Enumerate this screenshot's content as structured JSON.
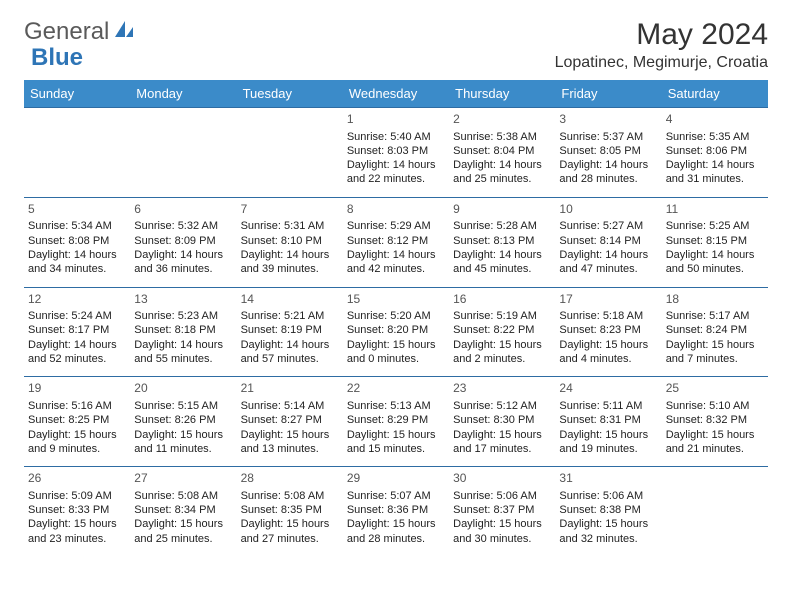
{
  "logo": {
    "text1": "General",
    "text2": "Blue"
  },
  "title": "May 2024",
  "location": "Lopatinec, Megimurje, Croatia",
  "colors": {
    "header_bg": "#3b8bc9",
    "header_text": "#ffffff",
    "row_border": "#2e6ca3",
    "logo_blue": "#2e75b6",
    "text": "#222222"
  },
  "day_headers": [
    "Sunday",
    "Monday",
    "Tuesday",
    "Wednesday",
    "Thursday",
    "Friday",
    "Saturday"
  ],
  "weeks": [
    [
      null,
      null,
      null,
      {
        "n": "1",
        "sr": "5:40 AM",
        "ss": "8:03 PM",
        "dl": "14 hours and 22 minutes."
      },
      {
        "n": "2",
        "sr": "5:38 AM",
        "ss": "8:04 PM",
        "dl": "14 hours and 25 minutes."
      },
      {
        "n": "3",
        "sr": "5:37 AM",
        "ss": "8:05 PM",
        "dl": "14 hours and 28 minutes."
      },
      {
        "n": "4",
        "sr": "5:35 AM",
        "ss": "8:06 PM",
        "dl": "14 hours and 31 minutes."
      }
    ],
    [
      {
        "n": "5",
        "sr": "5:34 AM",
        "ss": "8:08 PM",
        "dl": "14 hours and 34 minutes."
      },
      {
        "n": "6",
        "sr": "5:32 AM",
        "ss": "8:09 PM",
        "dl": "14 hours and 36 minutes."
      },
      {
        "n": "7",
        "sr": "5:31 AM",
        "ss": "8:10 PM",
        "dl": "14 hours and 39 minutes."
      },
      {
        "n": "8",
        "sr": "5:29 AM",
        "ss": "8:12 PM",
        "dl": "14 hours and 42 minutes."
      },
      {
        "n": "9",
        "sr": "5:28 AM",
        "ss": "8:13 PM",
        "dl": "14 hours and 45 minutes."
      },
      {
        "n": "10",
        "sr": "5:27 AM",
        "ss": "8:14 PM",
        "dl": "14 hours and 47 minutes."
      },
      {
        "n": "11",
        "sr": "5:25 AM",
        "ss": "8:15 PM",
        "dl": "14 hours and 50 minutes."
      }
    ],
    [
      {
        "n": "12",
        "sr": "5:24 AM",
        "ss": "8:17 PM",
        "dl": "14 hours and 52 minutes."
      },
      {
        "n": "13",
        "sr": "5:23 AM",
        "ss": "8:18 PM",
        "dl": "14 hours and 55 minutes."
      },
      {
        "n": "14",
        "sr": "5:21 AM",
        "ss": "8:19 PM",
        "dl": "14 hours and 57 minutes."
      },
      {
        "n": "15",
        "sr": "5:20 AM",
        "ss": "8:20 PM",
        "dl": "15 hours and 0 minutes."
      },
      {
        "n": "16",
        "sr": "5:19 AM",
        "ss": "8:22 PM",
        "dl": "15 hours and 2 minutes."
      },
      {
        "n": "17",
        "sr": "5:18 AM",
        "ss": "8:23 PM",
        "dl": "15 hours and 4 minutes."
      },
      {
        "n": "18",
        "sr": "5:17 AM",
        "ss": "8:24 PM",
        "dl": "15 hours and 7 minutes."
      }
    ],
    [
      {
        "n": "19",
        "sr": "5:16 AM",
        "ss": "8:25 PM",
        "dl": "15 hours and 9 minutes."
      },
      {
        "n": "20",
        "sr": "5:15 AM",
        "ss": "8:26 PM",
        "dl": "15 hours and 11 minutes."
      },
      {
        "n": "21",
        "sr": "5:14 AM",
        "ss": "8:27 PM",
        "dl": "15 hours and 13 minutes."
      },
      {
        "n": "22",
        "sr": "5:13 AM",
        "ss": "8:29 PM",
        "dl": "15 hours and 15 minutes."
      },
      {
        "n": "23",
        "sr": "5:12 AM",
        "ss": "8:30 PM",
        "dl": "15 hours and 17 minutes."
      },
      {
        "n": "24",
        "sr": "5:11 AM",
        "ss": "8:31 PM",
        "dl": "15 hours and 19 minutes."
      },
      {
        "n": "25",
        "sr": "5:10 AM",
        "ss": "8:32 PM",
        "dl": "15 hours and 21 minutes."
      }
    ],
    [
      {
        "n": "26",
        "sr": "5:09 AM",
        "ss": "8:33 PM",
        "dl": "15 hours and 23 minutes."
      },
      {
        "n": "27",
        "sr": "5:08 AM",
        "ss": "8:34 PM",
        "dl": "15 hours and 25 minutes."
      },
      {
        "n": "28",
        "sr": "5:08 AM",
        "ss": "8:35 PM",
        "dl": "15 hours and 27 minutes."
      },
      {
        "n": "29",
        "sr": "5:07 AM",
        "ss": "8:36 PM",
        "dl": "15 hours and 28 minutes."
      },
      {
        "n": "30",
        "sr": "5:06 AM",
        "ss": "8:37 PM",
        "dl": "15 hours and 30 minutes."
      },
      {
        "n": "31",
        "sr": "5:06 AM",
        "ss": "8:38 PM",
        "dl": "15 hours and 32 minutes."
      },
      null
    ]
  ],
  "labels": {
    "sunrise": "Sunrise:",
    "sunset": "Sunset:",
    "daylight": "Daylight:"
  }
}
